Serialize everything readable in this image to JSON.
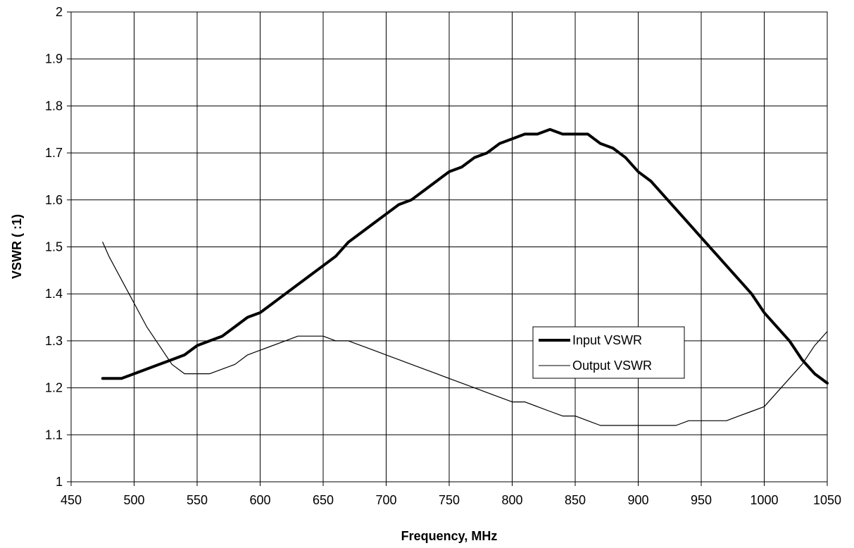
{
  "chart_data": {
    "type": "line",
    "title": "",
    "xlabel": "Frequency, MHz",
    "ylabel": "VSWR ( :1)",
    "xlim": [
      450,
      1050
    ],
    "ylim": [
      1,
      2
    ],
    "xticks": [
      "450",
      "500",
      "550",
      "600",
      "650",
      "700",
      "750",
      "800",
      "850",
      "900",
      "950",
      "1000",
      "1050"
    ],
    "yticks": [
      "1",
      "1.1",
      "1.2",
      "1.3",
      "1.4",
      "1.5",
      "1.6",
      "1.7",
      "1.8",
      "1.9",
      "2"
    ],
    "grid": true,
    "legend_position": "right",
    "series": [
      {
        "name": "Input VSWR",
        "color": "#000000",
        "style": "thick",
        "x": [
          475,
          490,
          500,
          520,
          540,
          550,
          560,
          570,
          580,
          590,
          600,
          620,
          640,
          650,
          660,
          670,
          680,
          690,
          700,
          710,
          720,
          730,
          740,
          750,
          760,
          770,
          780,
          790,
          800,
          810,
          820,
          830,
          840,
          850,
          860,
          870,
          880,
          890,
          900,
          910,
          920,
          930,
          940,
          950,
          960,
          970,
          980,
          990,
          1000,
          1010,
          1020,
          1030,
          1040,
          1050
        ],
        "y": [
          1.22,
          1.22,
          1.23,
          1.25,
          1.27,
          1.29,
          1.3,
          1.31,
          1.33,
          1.35,
          1.36,
          1.4,
          1.44,
          1.46,
          1.48,
          1.51,
          1.53,
          1.55,
          1.57,
          1.59,
          1.6,
          1.62,
          1.64,
          1.66,
          1.67,
          1.69,
          1.7,
          1.72,
          1.73,
          1.74,
          1.74,
          1.75,
          1.74,
          1.74,
          1.74,
          1.72,
          1.71,
          1.69,
          1.66,
          1.64,
          1.61,
          1.58,
          1.55,
          1.52,
          1.49,
          1.46,
          1.43,
          1.4,
          1.36,
          1.33,
          1.3,
          1.26,
          1.23,
          1.21
        ]
      },
      {
        "name": "Output VSWR",
        "color": "#000000",
        "style": "thin",
        "x": [
          475,
          480,
          490,
          500,
          510,
          520,
          530,
          540,
          545,
          560,
          570,
          580,
          590,
          600,
          620,
          630,
          640,
          650,
          660,
          670,
          680,
          690,
          700,
          710,
          720,
          730,
          740,
          750,
          760,
          770,
          780,
          790,
          800,
          810,
          820,
          830,
          840,
          850,
          860,
          870,
          880,
          890,
          900,
          910,
          920,
          930,
          940,
          950,
          960,
          970,
          980,
          990,
          1000,
          1010,
          1020,
          1030,
          1040,
          1050
        ],
        "y": [
          1.51,
          1.48,
          1.43,
          1.38,
          1.33,
          1.29,
          1.25,
          1.23,
          1.23,
          1.23,
          1.24,
          1.25,
          1.27,
          1.28,
          1.3,
          1.31,
          1.31,
          1.31,
          1.3,
          1.3,
          1.29,
          1.28,
          1.27,
          1.26,
          1.25,
          1.24,
          1.23,
          1.22,
          1.21,
          1.2,
          1.19,
          1.18,
          1.17,
          1.17,
          1.16,
          1.15,
          1.14,
          1.14,
          1.13,
          1.12,
          1.12,
          1.12,
          1.12,
          1.12,
          1.12,
          1.12,
          1.13,
          1.13,
          1.13,
          1.13,
          1.14,
          1.15,
          1.16,
          1.19,
          1.22,
          1.25,
          1.29,
          1.32
        ]
      }
    ]
  }
}
